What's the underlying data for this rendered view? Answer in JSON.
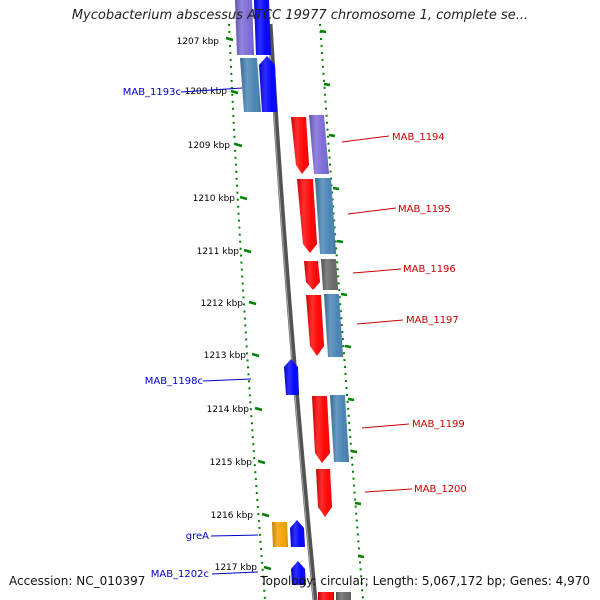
{
  "title": "Mycobacterium abscessus ATCC 19977 chromosome 1, complete se...",
  "footer": {
    "accession": "Accession: NC_010397",
    "summary": "Topology: circular; Length: 5,067,172 bp; Genes: 4,970"
  },
  "scale_labels": [
    "1207 kbp",
    "1208 kbp",
    "1209 kbp",
    "1210 kbp",
    "1211 kbp",
    "1212 kbp",
    "1213 kbp",
    "1214 kbp",
    "1215 kbp",
    "1216 kbp",
    "1217 kbp"
  ],
  "left_gene_labels": [
    "MAB_1193c",
    "MAB_1198c",
    "greA",
    "MAB_1202c"
  ],
  "right_gene_labels": [
    "MAB_1194",
    "MAB_1195",
    "MAB_1196",
    "MAB_1197",
    "MAB_1199",
    "MAB_1200"
  ],
  "colors": {
    "forward_gene": "#ff0000",
    "reverse_gene": "#0000ff",
    "feature_purple": "#7b68d8",
    "feature_steel": "#4682b4",
    "feature_gray": "#666666",
    "feature_orange": "#f5a000",
    "backbone": "#7f7f7f",
    "tick_green": "#008000",
    "label_red": "#cc0000",
    "label_blue": "#0000cc"
  }
}
